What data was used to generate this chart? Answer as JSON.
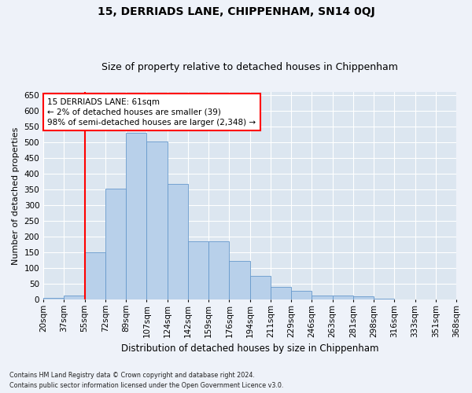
{
  "title": "15, DERRIADS LANE, CHIPPENHAM, SN14 0QJ",
  "subtitle": "Size of property relative to detached houses in Chippenham",
  "xlabel": "Distribution of detached houses by size in Chippenham",
  "ylabel": "Number of detached properties",
  "bar_values": [
    5,
    13,
    150,
    353,
    530,
    503,
    368,
    186,
    186,
    122,
    76,
    40,
    27,
    12,
    12,
    10,
    3,
    1,
    0,
    0
  ],
  "bar_labels": [
    "20sqm",
    "37sqm",
    "55sqm",
    "72sqm",
    "89sqm",
    "107sqm",
    "124sqm",
    "142sqm",
    "159sqm",
    "176sqm",
    "194sqm",
    "211sqm",
    "229sqm",
    "246sqm",
    "263sqm",
    "281sqm",
    "298sqm",
    "316sqm",
    "333sqm",
    "351sqm",
    "368sqm"
  ],
  "bar_color": "#b8d0ea",
  "bar_edge_color": "#6699cc",
  "red_line_index": 2,
  "ylim": [
    0,
    660
  ],
  "yticks": [
    0,
    50,
    100,
    150,
    200,
    250,
    300,
    350,
    400,
    450,
    500,
    550,
    600,
    650
  ],
  "annotation_text": "15 DERRIADS LANE: 61sqm\n← 2% of detached houses are smaller (39)\n98% of semi-detached houses are larger (2,348) →",
  "footer_line1": "Contains HM Land Registry data © Crown copyright and database right 2024.",
  "footer_line2": "Contains public sector information licensed under the Open Government Licence v3.0.",
  "bg_color": "#eef2f9",
  "plot_bg_color": "#dce6f0",
  "grid_color": "#ffffff",
  "title_fontsize": 10,
  "subtitle_fontsize": 9,
  "ylabel_fontsize": 8,
  "xlabel_fontsize": 8.5,
  "tick_fontsize": 7.5,
  "ann_fontsize": 7.5
}
